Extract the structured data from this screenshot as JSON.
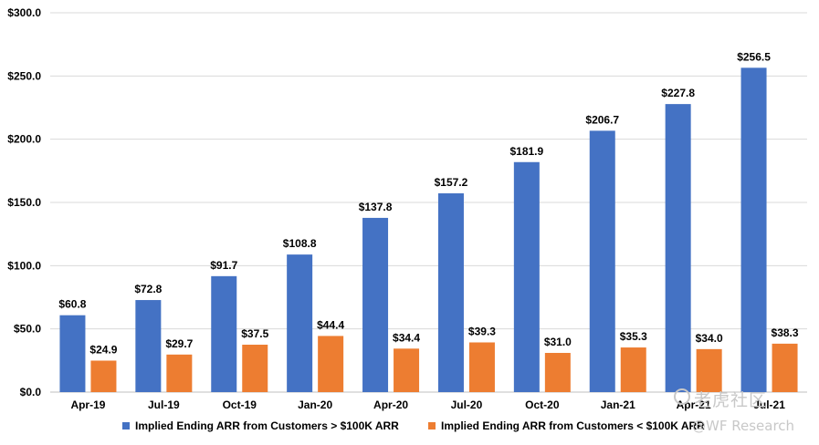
{
  "chart_data": {
    "type": "bar",
    "title": "",
    "xlabel": "",
    "ylabel": "",
    "categories": [
      "Apr-19",
      "Jul-19",
      "Oct-19",
      "Jan-20",
      "Apr-20",
      "Jul-20",
      "Oct-20",
      "Jan-21",
      "Apr-21",
      "Jul-21"
    ],
    "series": [
      {
        "name": "Implied Ending ARR from Customers > $100K ARR",
        "color": "#4472C4",
        "values": [
          60.8,
          72.8,
          91.7,
          108.8,
          137.8,
          157.2,
          181.9,
          206.7,
          227.8,
          256.5
        ],
        "labels": [
          "$60.8",
          "$72.8",
          "$91.7",
          "$108.8",
          "$137.8",
          "$157.2",
          "$181.9",
          "$206.7",
          "$227.8",
          "$256.5"
        ]
      },
      {
        "name": "Implied Ending ARR from Customers < $100K ARR",
        "color": "#ED7D31",
        "values": [
          24.9,
          29.7,
          37.5,
          44.4,
          34.4,
          39.3,
          31.0,
          35.3,
          34.0,
          38.3
        ],
        "labels": [
          "$24.9",
          "$29.7",
          "$37.5",
          "$44.4",
          "$34.4",
          "$39.3",
          "$31.0",
          "$35.3",
          "$34.0",
          "$38.3"
        ]
      }
    ],
    "ylim": [
      0,
      300
    ],
    "yticks": [
      0,
      50,
      100,
      150,
      200,
      250,
      300
    ],
    "ytick_labels": [
      "$0.0",
      "$50.0",
      "$100.0",
      "$150.0",
      "$200.0",
      "$250.0",
      "$300.0"
    ],
    "grid": true,
    "legend_position": "bottom"
  },
  "watermark": {
    "text_cn": "老虎社区",
    "text_en": "@WF Research"
  }
}
